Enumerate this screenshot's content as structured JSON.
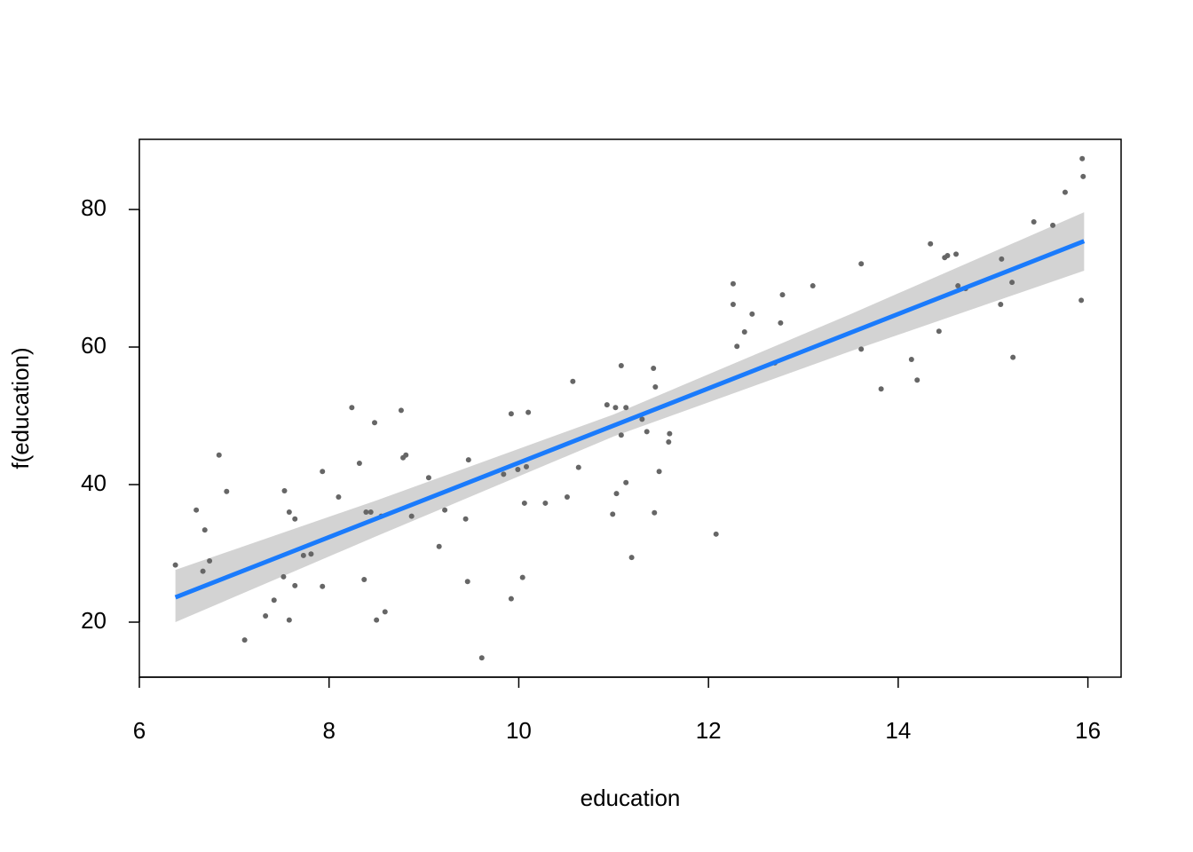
{
  "chart_data": {
    "type": "scatter",
    "x_label": "education",
    "y_label": "f(education)",
    "xlim": [
      6.0,
      16.35
    ],
    "ylim": [
      12.0,
      90.2
    ],
    "xticks": [
      6,
      8,
      10,
      12,
      14,
      16
    ],
    "yticks": [
      20,
      40,
      60,
      80
    ],
    "color": "#666666",
    "x": [
      6.38,
      6.6,
      6.67,
      6.69,
      6.74,
      6.84,
      6.92,
      7.11,
      7.33,
      7.42,
      7.52,
      7.53,
      7.58,
      7.58,
      7.64,
      7.64,
      7.73,
      7.81,
      7.93,
      7.93,
      8.1,
      8.24,
      8.32,
      8.37,
      8.39,
      8.44,
      8.48,
      8.5,
      8.55,
      8.59,
      8.76,
      8.78,
      8.81,
      8.87,
      9.05,
      9.16,
      9.22,
      9.44,
      9.46,
      9.47,
      9.61,
      9.84,
      9.92,
      9.92,
      9.99,
      10.04,
      10.06,
      10.08,
      10.1,
      10.28,
      10.51,
      10.57,
      10.63,
      10.93,
      10.99,
      11.02,
      11.03,
      11.08,
      11.08,
      11.13,
      11.13,
      11.19,
      11.3,
      11.35,
      11.42,
      11.43,
      11.44,
      11.48,
      11.58,
      11.59,
      12.08,
      12.26,
      12.26,
      12.3,
      12.38,
      12.46,
      12.7,
      12.76,
      12.78,
      13.1,
      13.61,
      13.61,
      13.82,
      14.14,
      14.2,
      14.34,
      14.43,
      14.49,
      14.52,
      14.61,
      14.63,
      14.71,
      15.08,
      15.09,
      15.2,
      15.21,
      15.43,
      15.63,
      15.76,
      15.93,
      15.94,
      15.95
    ],
    "y": [
      28.3,
      36.3,
      27.4,
      33.4,
      28.9,
      44.3,
      39.0,
      17.4,
      20.9,
      23.2,
      26.6,
      39.1,
      36.0,
      20.3,
      35.0,
      25.3,
      29.7,
      29.9,
      41.9,
      25.2,
      38.2,
      51.2,
      43.1,
      26.2,
      36.0,
      36.0,
      49.0,
      20.3,
      35.4,
      21.5,
      50.8,
      43.9,
      44.3,
      35.4,
      41.0,
      31.0,
      36.3,
      35.0,
      25.9,
      43.6,
      14.8,
      41.5,
      50.3,
      23.4,
      42.2,
      26.5,
      37.3,
      42.6,
      50.5,
      37.3,
      38.2,
      55.0,
      42.5,
      51.6,
      35.7,
      51.2,
      38.7,
      57.3,
      47.2,
      51.2,
      40.3,
      29.4,
      49.5,
      47.7,
      56.9,
      35.9,
      54.2,
      41.9,
      46.2,
      47.4,
      32.8,
      69.2,
      66.2,
      60.1,
      62.2,
      64.8,
      57.7,
      63.5,
      67.6,
      68.9,
      72.1,
      59.7,
      53.9,
      58.2,
      55.2,
      75.0,
      62.3,
      73.0,
      73.3,
      73.5,
      68.9,
      68.5,
      66.2,
      72.8,
      69.4,
      58.5,
      78.2,
      77.7,
      82.5,
      66.8,
      87.4,
      84.8
    ],
    "band": {
      "color": "#d3d3d3",
      "x": [
        6.38,
        8.5,
        11,
        13.5,
        15.96
      ],
      "upper": [
        27.6,
        37.7,
        50.2,
        64.8,
        79.6
      ],
      "lower": [
        20.0,
        32.5,
        47.0,
        59.4,
        71.1
      ]
    },
    "fit": {
      "color": "#1a7bfc",
      "x": [
        6.38,
        15.96
      ],
      "y": [
        23.6,
        75.4
      ]
    }
  }
}
